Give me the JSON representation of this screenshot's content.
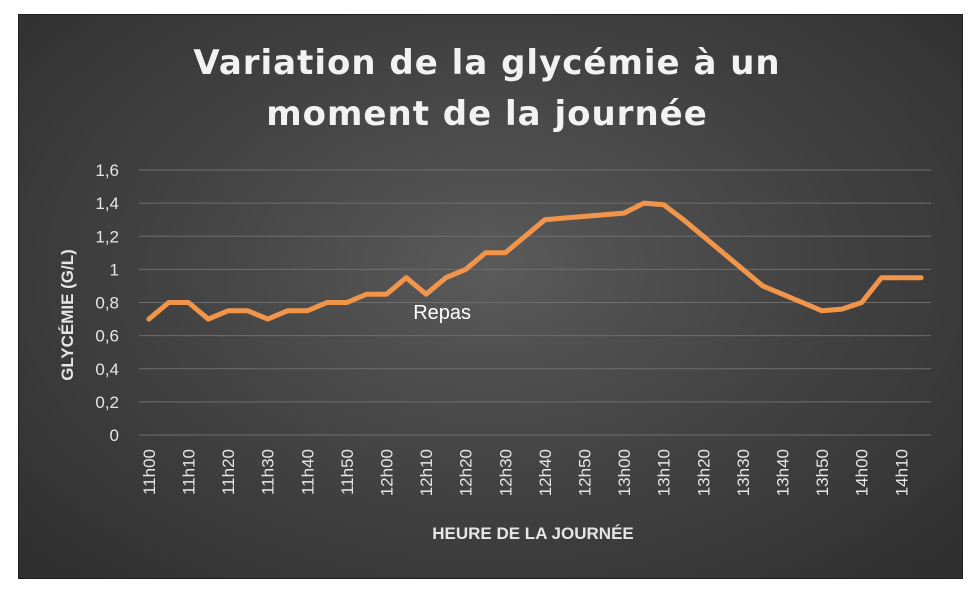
{
  "chart_data": {
    "type": "line",
    "title_lines": [
      "Variation de la glycémie à un",
      "moment de la journée"
    ],
    "xlabel": "HEURE DE LA JOURNÉE",
    "ylabel": "GLYCÉMIE (G/L)",
    "ylim": [
      0,
      1.6
    ],
    "y_ticks": [
      "0",
      "0,2",
      "0,4",
      "0,6",
      "0,8",
      "1",
      "1,2",
      "1,4",
      "1,6"
    ],
    "y_tick_values": [
      0,
      0.2,
      0.4,
      0.6,
      0.8,
      1.0,
      1.2,
      1.4,
      1.6
    ],
    "x": [
      "11h00",
      "11h05",
      "11h10",
      "11h15",
      "11h20",
      "11h25",
      "11h30",
      "11h35",
      "11h40",
      "11h45",
      "11h50",
      "11h55",
      "12h00",
      "12h05",
      "12h10",
      "12h15",
      "12h20",
      "12h25",
      "12h30",
      "12h35",
      "12h40",
      "12h45",
      "12h50",
      "12h55",
      "13h00",
      "13h05",
      "13h10",
      "13h15",
      "13h20",
      "13h25",
      "13h30",
      "13h35",
      "13h40",
      "13h45",
      "13h50",
      "13h55",
      "14h00",
      "14h05",
      "14h10",
      "14h15"
    ],
    "x_tick_labels": [
      "11h00",
      "11h10",
      "11h20",
      "11h30",
      "11h40",
      "11h50",
      "12h00",
      "12h10",
      "12h20",
      "12h30",
      "12h40",
      "12h50",
      "13h00",
      "13h10",
      "13h20",
      "13h30",
      "13h40",
      "13h50",
      "14h00",
      "14h10"
    ],
    "series": [
      {
        "values": [
          0.7,
          0.8,
          0.8,
          0.7,
          0.75,
          0.75,
          0.7,
          0.75,
          0.75,
          0.8,
          0.8,
          0.85,
          0.85,
          0.95,
          0.85,
          0.95,
          1.0,
          1.1,
          1.1,
          1.2,
          1.3,
          1.31,
          1.32,
          1.33,
          1.34,
          1.4,
          1.39,
          1.3,
          1.2,
          1.1,
          1.0,
          0.9,
          0.85,
          0.8,
          0.75,
          0.76,
          0.8,
          0.95,
          0.95,
          0.95
        ],
        "color": "#F0954A"
      }
    ],
    "annotations": [
      {
        "text": "Repas",
        "x": "12h10",
        "y": 0.73
      }
    ],
    "grid": true,
    "gridline_color": "#6e6e6e",
    "background_color": "#404040"
  }
}
